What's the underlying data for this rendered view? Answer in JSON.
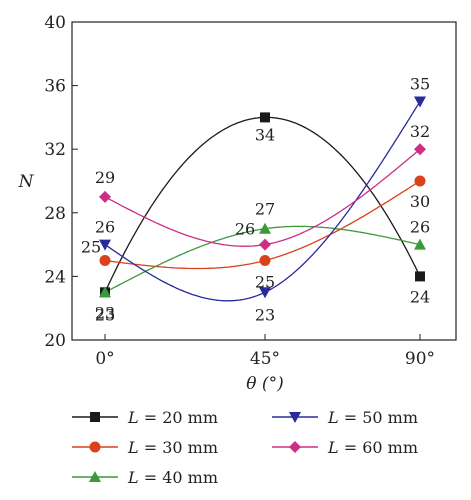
{
  "chart_data": {
    "type": "line",
    "xlabel": "θ (°)",
    "ylabel": "N",
    "categories": [
      "0°",
      "45°",
      "90°"
    ],
    "ylim": [
      20,
      40
    ],
    "yticks": [
      20,
      24,
      28,
      32,
      36,
      40
    ],
    "grid": false,
    "legend_position": "bottom",
    "series": [
      {
        "name": "L = 20 mm",
        "legend_var": "L",
        "legend_rest": " = 20 mm",
        "values": [
          23,
          34,
          24
        ],
        "labels": [
          "23",
          "34",
          "24"
        ],
        "color": "#1a1a1a",
        "marker": "square"
      },
      {
        "name": "L = 30 mm",
        "legend_var": "L",
        "legend_rest": " = 30 mm",
        "values": [
          25,
          25,
          30
        ],
        "labels": [
          "25",
          "25",
          "30"
        ],
        "color": "#d9421d",
        "marker": "circle"
      },
      {
        "name": "L = 40 mm",
        "legend_var": "L",
        "legend_rest": " = 40 mm",
        "values": [
          23,
          27,
          26
        ],
        "labels": [
          "23",
          "27",
          "26"
        ],
        "color": "#3a9a3a",
        "marker": "triangle-up"
      },
      {
        "name": "L = 50 mm",
        "legend_var": "L",
        "legend_rest": " = 50 mm",
        "values": [
          26,
          23,
          35
        ],
        "labels": [
          "26",
          "23",
          "35"
        ],
        "color": "#2a2a9a",
        "marker": "triangle-down"
      },
      {
        "name": "L = 60 mm",
        "legend_var": "L",
        "legend_rest": " = 60 mm",
        "values": [
          29,
          26,
          32
        ],
        "labels": [
          "29",
          "26",
          "32"
        ],
        "color": "#cc2f84",
        "marker": "diamond"
      }
    ]
  }
}
